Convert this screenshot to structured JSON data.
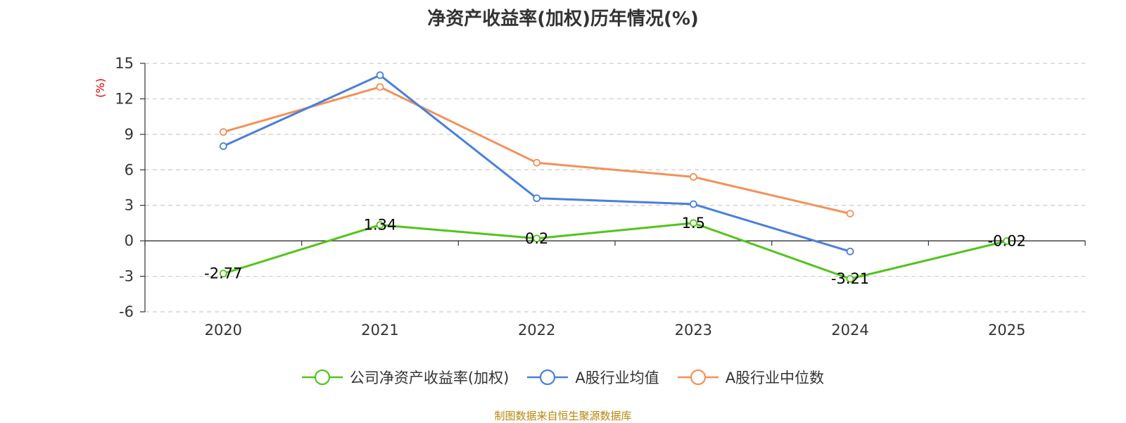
{
  "chart_data": {
    "type": "line",
    "title": "净资产收益率(加权)历年情况(%)",
    "ylabel": "(%)",
    "categories": [
      "2020",
      "2021",
      "2022",
      "2023",
      "2024",
      "2025"
    ],
    "ylim": [
      -6,
      15
    ],
    "yticks": [
      -6,
      -3,
      0,
      3,
      6,
      9,
      12,
      15
    ],
    "grid": true,
    "legend_position": "bottom",
    "series": [
      {
        "name": "公司净资产收益率(加权)",
        "color": "#52c41a",
        "values": [
          -2.77,
          1.34,
          0.2,
          1.5,
          -3.21,
          -0.02
        ],
        "labels": [
          "-2.77",
          "1.34",
          "0.2",
          "1.5",
          "-3.21",
          "-0.02"
        ]
      },
      {
        "name": "A股行业均值",
        "color": "#4a7fdc",
        "values": [
          8.0,
          14.0,
          3.6,
          3.1,
          -0.9,
          null
        ]
      },
      {
        "name": "A股行业中位数",
        "color": "#f4905a",
        "values": [
          9.2,
          13.0,
          6.6,
          5.4,
          2.3,
          null
        ]
      }
    ]
  },
  "footer": {
    "source": "制图数据来自恒生聚源数据库"
  },
  "colors": {
    "unit_label": "#e00000",
    "grid": "#cccccc",
    "axis": "#333333"
  }
}
